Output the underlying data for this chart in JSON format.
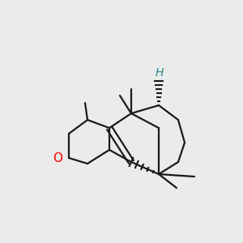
{
  "bg_color": "#ebebeb",
  "bond_color": "#1a1a1a",
  "bond_width": 1.6,
  "o_color": "#ff0000",
  "h_color": "#2e8b8b",
  "fig_size": [
    3.0,
    3.0
  ],
  "dpi": 100
}
